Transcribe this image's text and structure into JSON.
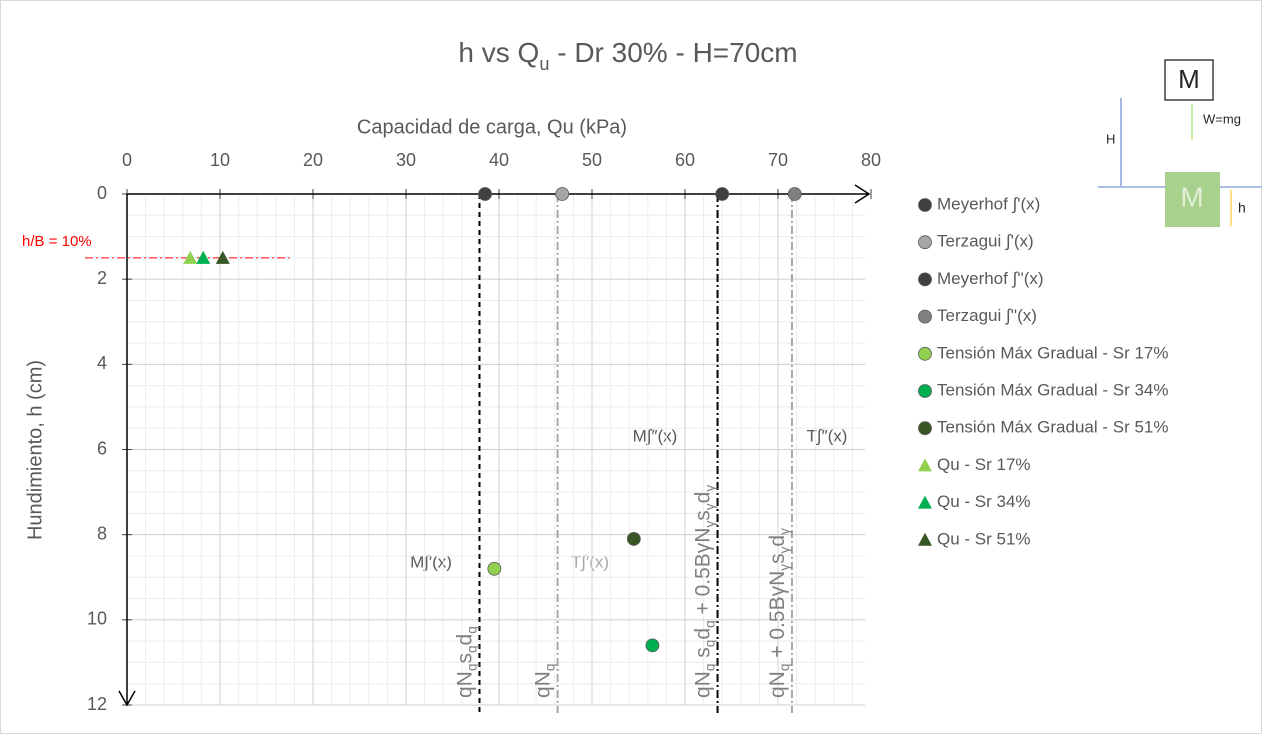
{
  "chart_data": {
    "type": "scatter",
    "title": [
      {
        "text": "h vs Q"
      },
      {
        "text": "u",
        "sub": true
      },
      {
        "text": " - Dr 30% - H=70cm"
      }
    ],
    "x_label": "Capacidad de carga, Qu (kPa)",
    "y_label": "Hundimiento, h (cm)",
    "xlim": [
      0,
      80
    ],
    "xticks": [
      0,
      10,
      20,
      30,
      40,
      50,
      60,
      70,
      80
    ],
    "ylim": [
      0,
      12
    ],
    "yticks": [
      0,
      2,
      4,
      6,
      8,
      10,
      12
    ],
    "y_inverted": true,
    "x_axis_position": "top",
    "grid": true,
    "minor_grid_step": [
      2,
      0.5
    ],
    "legend": "right",
    "series": [
      {
        "name": "Meyerhof ∫'(x)",
        "color": "#404040",
        "marker": "circle",
        "x": [
          38.5
        ],
        "values": [
          0
        ]
      },
      {
        "name": "Terzagui ∫'(x)",
        "color": "#a6a6a6",
        "marker": "circle",
        "x": [
          46.8
        ],
        "values": [
          0
        ]
      },
      {
        "name": "Meyerhof ∫''(x)",
        "color": "#404040",
        "marker": "circle",
        "x": [
          64
        ],
        "values": [
          0
        ]
      },
      {
        "name": "Terzagui ∫''(x)",
        "color": "#808080",
        "marker": "circle",
        "x": [
          71.8
        ],
        "values": [
          0
        ]
      },
      {
        "name": "Tensión Máx Gradual - Sr 17%",
        "color": "#92d050",
        "marker": "circle",
        "x": [
          39.5
        ],
        "values": [
          8.8
        ]
      },
      {
        "name": "Tensión Máx Gradual - Sr 34%",
        "color": "#00b050",
        "marker": "circle",
        "x": [
          56.5
        ],
        "values": [
          10.6
        ]
      },
      {
        "name": "Tensión Máx Gradual - Sr 51%",
        "color": "#375623",
        "marker": "circle",
        "x": [
          54.5
        ],
        "values": [
          8.1
        ]
      },
      {
        "name": "Qu - Sr 17%",
        "color": "#92d050",
        "marker": "triangle",
        "x": [
          6.8
        ],
        "values": [
          1.5
        ]
      },
      {
        "name": "Qu - Sr 34%",
        "color": "#00b050",
        "marker": "triangle",
        "x": [
          8.2
        ],
        "values": [
          1.5
        ]
      },
      {
        "name": "Qu - Sr 51%",
        "color": "#375623",
        "marker": "triangle",
        "x": [
          10.3
        ],
        "values": [
          1.5
        ]
      }
    ],
    "reference_lines": [
      {
        "x": 37.9,
        "color": "#000000",
        "dash": "5,4",
        "label": [
          {
            "text": "qN"
          },
          {
            "text": "q",
            "sub": true
          },
          {
            "text": "s"
          },
          {
            "text": "q",
            "sub": true
          },
          {
            "text": "d"
          },
          {
            "text": "q",
            "sub": true
          }
        ]
      },
      {
        "x": 46.3,
        "color": "#a6a6a6",
        "dash": "8,3,2,3",
        "label": [
          {
            "text": "qN"
          },
          {
            "text": "q",
            "sub": true
          }
        ]
      },
      {
        "x": 63.5,
        "color": "#000000",
        "dash": "8,3,2,3",
        "label": [
          {
            "text": "qN"
          },
          {
            "text": "q",
            "sub": true
          },
          {
            "text": " s"
          },
          {
            "text": "q",
            "sub": true
          },
          {
            "text": "d"
          },
          {
            "text": "q",
            "sub": true
          },
          {
            "text": " + 0.5BγN"
          },
          {
            "text": "γ",
            "sub": true
          },
          {
            "text": "s"
          },
          {
            "text": "γ",
            "sub": true
          },
          {
            "text": "d"
          },
          {
            "text": "γ",
            "sub": true
          }
        ]
      },
      {
        "x": 71.5,
        "color": "#a6a6a6",
        "dash": "8,3,2,3",
        "label": [
          {
            "text": "qN"
          },
          {
            "text": "q",
            "sub": true
          },
          {
            "text": " + 0.5BγN"
          },
          {
            "text": "γ",
            "sub": true
          },
          {
            "text": "s"
          },
          {
            "text": "γ",
            "sub": true
          },
          {
            "text": "d"
          },
          {
            "text": "γ",
            "sub": true
          }
        ]
      }
    ],
    "threshold": {
      "label": "h/B = 10%",
      "y": 1.5,
      "x_end": 17.5,
      "color": "#ff0000"
    },
    "annotations": [
      "M∫′(x)",
      "T∫′(x)",
      "M∫″(x)",
      "T∫″(x)"
    ],
    "diagram": {
      "mass": "M",
      "weight": "W=mg",
      "height": "H",
      "sink": "h"
    }
  }
}
